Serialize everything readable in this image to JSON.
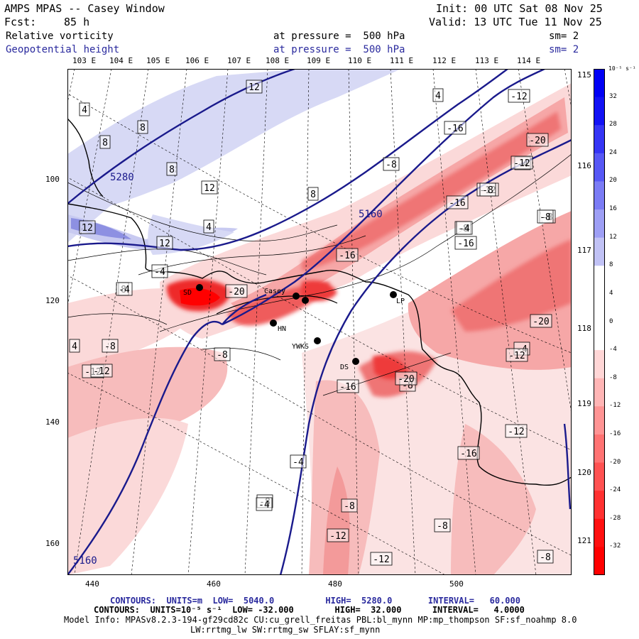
{
  "header": {
    "title": "AMPS MPAS -- Casey Window",
    "forecast_label": "Fcst:",
    "forecast_value": "85 h",
    "init": "Init: 00 UTC Sat 08 Nov 25",
    "valid": "Valid: 13 UTC Tue 11 Nov 25"
  },
  "fields": [
    {
      "name": "Relative vorticity",
      "pressure": "at pressure =  500 hPa",
      "smooth": "sm= 2",
      "color": "#000000"
    },
    {
      "name": "Geopotential height",
      "pressure": "at pressure =  500 hPa",
      "smooth": "sm= 2",
      "color": "#2a2a9e"
    }
  ],
  "longitude_labels": [
    "103 E",
    "104 E",
    "105 E",
    "106 E",
    "107 E",
    "108 E",
    "109 E",
    "110 E",
    "111 E",
    "112 E",
    "113 E",
    "114 E"
  ],
  "right_edge_labels": [
    "115 E",
    "116 E",
    "117 E",
    "118 E",
    "119 E",
    "120 E",
    "121 E"
  ],
  "y_axis": [
    "100",
    "120",
    "140",
    "160"
  ],
  "x_axis": [
    "440",
    "460",
    "480",
    "500"
  ],
  "colorbar": {
    "units": "10⁻⁵ s⁻¹",
    "ticks": [
      "32",
      "28",
      "24",
      "20",
      "16",
      "12",
      "8",
      "4",
      "0",
      "-4",
      "-8",
      "-12",
      "-16",
      "-20",
      "-24",
      "-28",
      "-32"
    ]
  },
  "stations": [
    "SD",
    "Casey",
    "LP",
    "HN",
    "YWKS",
    "DS"
  ],
  "contour_labels": {
    "height": [
      "5280",
      "5160",
      "5160"
    ],
    "vorticity": [
      "12",
      "4",
      "8",
      "8",
      "8",
      "12",
      "12",
      "8",
      "4",
      "12",
      "8",
      "-4",
      "-20",
      "-16",
      "-8",
      "-12",
      "-20",
      "-4",
      "-16",
      "-12",
      "-16",
      "-12",
      "-8",
      "-8",
      "-8",
      "-8",
      "-4",
      "-4",
      "-12",
      "-12",
      "-16",
      "-8",
      "-20",
      "-16",
      "-20",
      "-16",
      "-12",
      "-8",
      "-8",
      "-4",
      "-4",
      "-8",
      "-12",
      "-12",
      "-8",
      "-4",
      "4",
      "-8",
      "4",
      "-12",
      "-8"
    ]
  },
  "footer": {
    "contours1": "CONTOURS:  UNITS=m  LOW=  5040.0          HIGH=  5280.0       INTERVAL=   60.000",
    "contours2": "CONTOURS:  UNITS=10⁻⁵ s⁻¹  LOW= -32.000        HIGH=  32.000      INTERVAL=   4.0000",
    "model_info": "Model Info: MPASv8.2.3-194-gf29cd82c CU:cu_grell_freitas PBL:bl_mynn MP:mp_thompson SF:sf_noahmp 8.0",
    "model_info2": "LW:rrtmg_lw SW:rrtmg_sw SFLAY:sf_mynn"
  }
}
